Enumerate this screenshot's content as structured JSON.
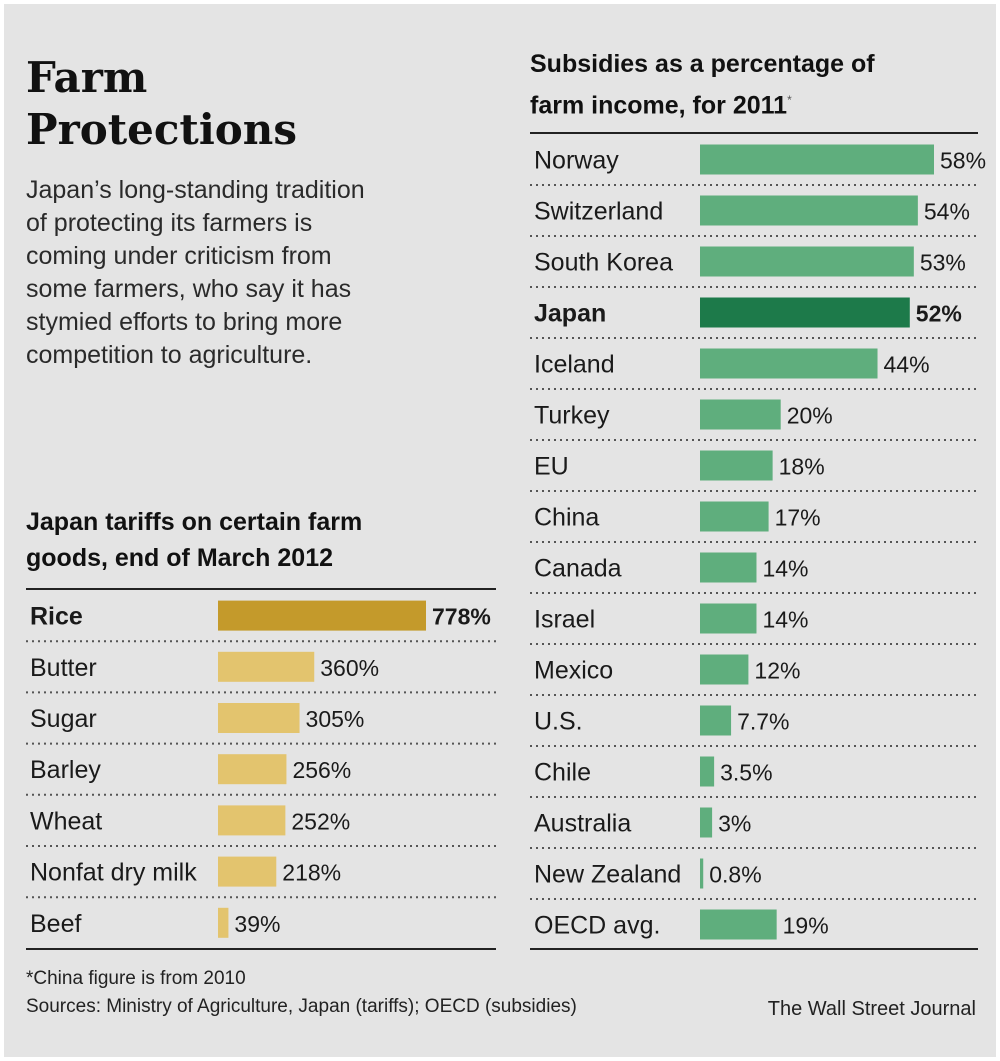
{
  "header": {
    "title_line1": "Farm",
    "title_line2": "Protections",
    "intro": "Japan’s long-standing tradition of protecting its farmers is coming under criticism from some farmers, who say it has stymied efforts to bring more competition to agriculture."
  },
  "footer": {
    "note": "*China figure is from 2010",
    "sources": "Sources: Ministry of Agriculture, Japan (tariffs); OECD (subsidies)",
    "credit": "The Wall Street Journal"
  },
  "colors": {
    "tariff_highlight": "#c49a2b",
    "tariff_bar": "#e3c46e",
    "subsidy_highlight": "#1d7a4a",
    "subsidy_bar": "#5fae7d"
  },
  "chart_data": [
    {
      "type": "bar",
      "orientation": "horizontal",
      "title_line1": "Japan tariffs on certain farm",
      "title_line2": "goods, end of March 2012",
      "unit": "%",
      "categories": [
        "Rice",
        "Butter",
        "Sugar",
        "Barley",
        "Wheat",
        "Nonfat dry milk",
        "Beef"
      ],
      "values": [
        778,
        360,
        305,
        256,
        252,
        218,
        39
      ],
      "labels": [
        "778%",
        "360%",
        "305%",
        "256%",
        "252%",
        "218%",
        "39%"
      ],
      "highlight": "Rice",
      "xlim": [
        0,
        778
      ],
      "grid": false,
      "legend": "none"
    },
    {
      "type": "bar",
      "orientation": "horizontal",
      "title_line1": "Subsidies as a percentage of",
      "title_line2": "farm income, for 2011",
      "title_note_mark": "*",
      "unit": "%",
      "categories": [
        "Norway",
        "Switzerland",
        "South Korea",
        "Japan",
        "Iceland",
        "Turkey",
        "EU",
        "China",
        "Canada",
        "Israel",
        "Mexico",
        "U.S.",
        "Chile",
        "Australia",
        "New Zealand",
        "OECD avg."
      ],
      "values": [
        58,
        54,
        53,
        52,
        44,
        20,
        18,
        17,
        14,
        14,
        12,
        7.7,
        3.5,
        3,
        0.8,
        19
      ],
      "labels": [
        "58%",
        "54%",
        "53%",
        "52%",
        "44%",
        "20%",
        "18%",
        "17%",
        "14%",
        "14%",
        "12%",
        "7.7%",
        "3.5%",
        "3%",
        "0.8%",
        "19%"
      ],
      "highlight": "Japan",
      "xlim": [
        0,
        58
      ],
      "grid": false,
      "legend": "none"
    }
  ]
}
